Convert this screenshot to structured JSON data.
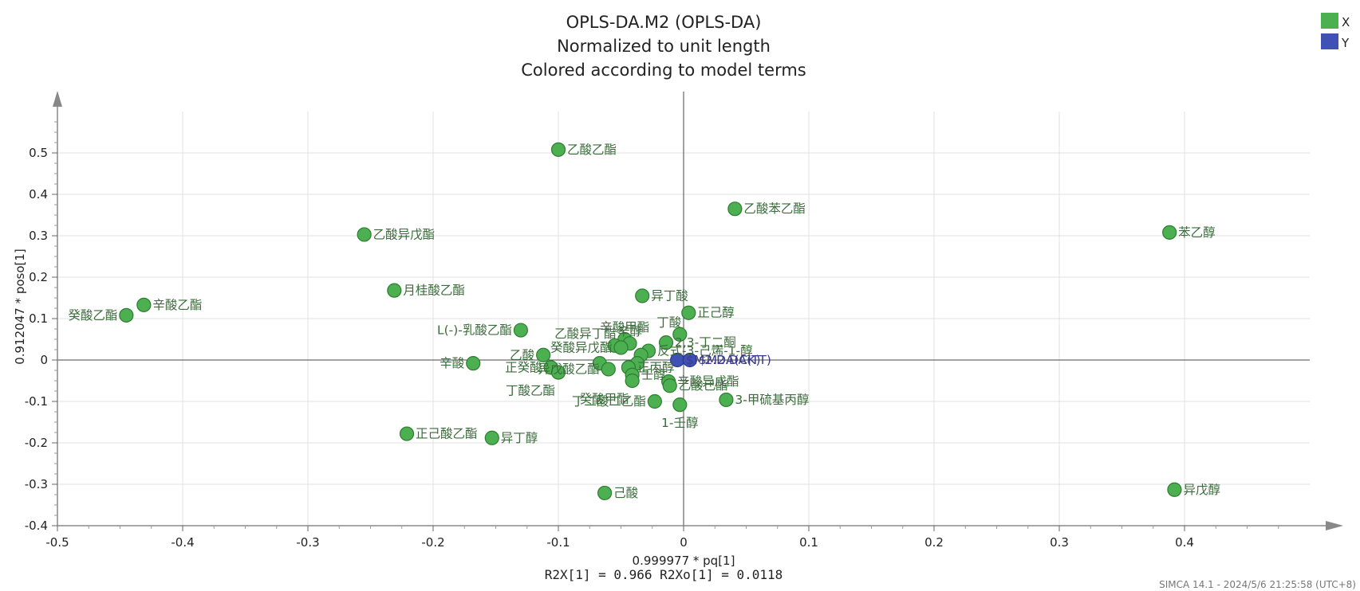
{
  "chart_data": {
    "type": "scatter",
    "title": [
      "OPLS-DA.M2 (OPLS-DA)",
      "Normalized to unit length",
      "Colored according to model terms"
    ],
    "xlabel": "0.999977 * pq[1]",
    "ylabel": "0.912047 * poso[1]",
    "xlim": [
      -0.5,
      0.5
    ],
    "ylim": [
      -0.4,
      0.6
    ],
    "xticks": [
      -0.5,
      -0.4,
      -0.3,
      -0.2,
      -0.1,
      0,
      0.1,
      0.2,
      0.3,
      0.4
    ],
    "yticks": [
      -0.4,
      -0.3,
      -0.2,
      -0.1,
      0,
      0.1,
      0.2,
      0.3,
      0.4,
      0.5
    ],
    "grid": true,
    "legend_position": "top-right",
    "series": [
      {
        "name": "X",
        "color": "#4caf50",
        "points": [
          {
            "x": -0.1,
            "y": 0.508,
            "label": "乙酸乙酯",
            "anchor": "right"
          },
          {
            "x": 0.041,
            "y": 0.365,
            "label": "乙酸苯乙酯",
            "anchor": "right"
          },
          {
            "x": 0.388,
            "y": 0.308,
            "label": "苯乙醇",
            "anchor": "right"
          },
          {
            "x": -0.255,
            "y": 0.303,
            "label": "乙酸异戊酯",
            "anchor": "right"
          },
          {
            "x": -0.231,
            "y": 0.168,
            "label": "月桂酸乙酯",
            "anchor": "right"
          },
          {
            "x": -0.431,
            "y": 0.133,
            "label": "辛酸乙酯",
            "anchor": "right"
          },
          {
            "x": -0.445,
            "y": 0.108,
            "label": "癸酸乙酯",
            "anchor": "left"
          },
          {
            "x": -0.033,
            "y": 0.155,
            "label": "异丁酸",
            "anchor": "right"
          },
          {
            "x": 0.004,
            "y": 0.114,
            "label": "正己醇",
            "anchor": "right"
          },
          {
            "x": -0.13,
            "y": 0.072,
            "label": "L(-)-乳酸乙酯",
            "anchor": "left"
          },
          {
            "x": -0.003,
            "y": 0.062,
            "label": "丁酸",
            "anchor": "above-left"
          },
          {
            "x": -0.047,
            "y": 0.05,
            "label": "辛酸甲酯",
            "anchor": "above"
          },
          {
            "x": -0.043,
            "y": 0.04,
            "label": "辛醇",
            "anchor": "above"
          },
          {
            "x": -0.055,
            "y": 0.035,
            "label": "乙酸异丁酯",
            "anchor": "above-left"
          },
          {
            "x": -0.05,
            "y": 0.03,
            "label": "癸酸异戊酯",
            "anchor": "left"
          },
          {
            "x": -0.014,
            "y": 0.042,
            "label": "2,3-丁二酮",
            "anchor": "right"
          },
          {
            "x": -0.028,
            "y": 0.022,
            "label": "反式-3-己烯-1-醇",
            "anchor": "right"
          },
          {
            "x": -0.034,
            "y": 0.012,
            "label": "",
            "anchor": "none"
          },
          {
            "x": -0.112,
            "y": 0.012,
            "label": "乙酸",
            "anchor": "left"
          },
          {
            "x": -0.168,
            "y": -0.008,
            "label": "辛酸",
            "anchor": "left"
          },
          {
            "x": -0.067,
            "y": -0.008,
            "label": "",
            "anchor": "none"
          },
          {
            "x": -0.06,
            "y": -0.022,
            "label": "异戊酸乙酯",
            "anchor": "left"
          },
          {
            "x": -0.106,
            "y": -0.018,
            "label": "正癸酸",
            "anchor": "left"
          },
          {
            "x": -0.1,
            "y": -0.03,
            "label": "丁酸乙酯",
            "anchor": "below-left"
          },
          {
            "x": -0.037,
            "y": -0.008,
            "label": "",
            "anchor": "none"
          },
          {
            "x": -0.044,
            "y": -0.018,
            "label": "正丙醇",
            "anchor": "right"
          },
          {
            "x": -0.041,
            "y": -0.036,
            "label": "壬醇",
            "anchor": "right"
          },
          {
            "x": -0.012,
            "y": -0.052,
            "label": "辛酸异戊酯",
            "anchor": "right"
          },
          {
            "x": -0.011,
            "y": -0.062,
            "label": "乙酸己酯",
            "anchor": "right"
          },
          {
            "x": -0.041,
            "y": -0.05,
            "label": "癸酸甲酯",
            "anchor": "below-left"
          },
          {
            "x": -0.023,
            "y": -0.1,
            "label": "丁二酸二乙酯",
            "anchor": "left"
          },
          {
            "x": -0.003,
            "y": -0.108,
            "label": "1-壬醇",
            "anchor": "below"
          },
          {
            "x": 0.034,
            "y": -0.096,
            "label": "3-甲硫基丙醇",
            "anchor": "right"
          },
          {
            "x": -0.221,
            "y": -0.178,
            "label": "正己酸乙酯",
            "anchor": "right"
          },
          {
            "x": -0.153,
            "y": -0.188,
            "label": "异丁醇",
            "anchor": "right"
          },
          {
            "x": -0.063,
            "y": -0.321,
            "label": "己酸",
            "anchor": "right"
          },
          {
            "x": 0.392,
            "y": -0.313,
            "label": "异戊醇",
            "anchor": "right"
          }
        ]
      },
      {
        "name": "Y",
        "color": "#3f51b5",
        "points": [
          {
            "x": -0.005,
            "y": 0.0,
            "label": "$M2.DA(CK)",
            "anchor": "right"
          },
          {
            "x": 0.005,
            "y": 0.0,
            "label": "$M2.DA(TT)",
            "anchor": "right"
          }
        ]
      }
    ]
  },
  "stats": "R2X[1] = 0.966   R2Xo[1] = 0.0118",
  "footer": "SIMCA 14.1 - 2024/5/6 21:25:58 (UTC+8)"
}
